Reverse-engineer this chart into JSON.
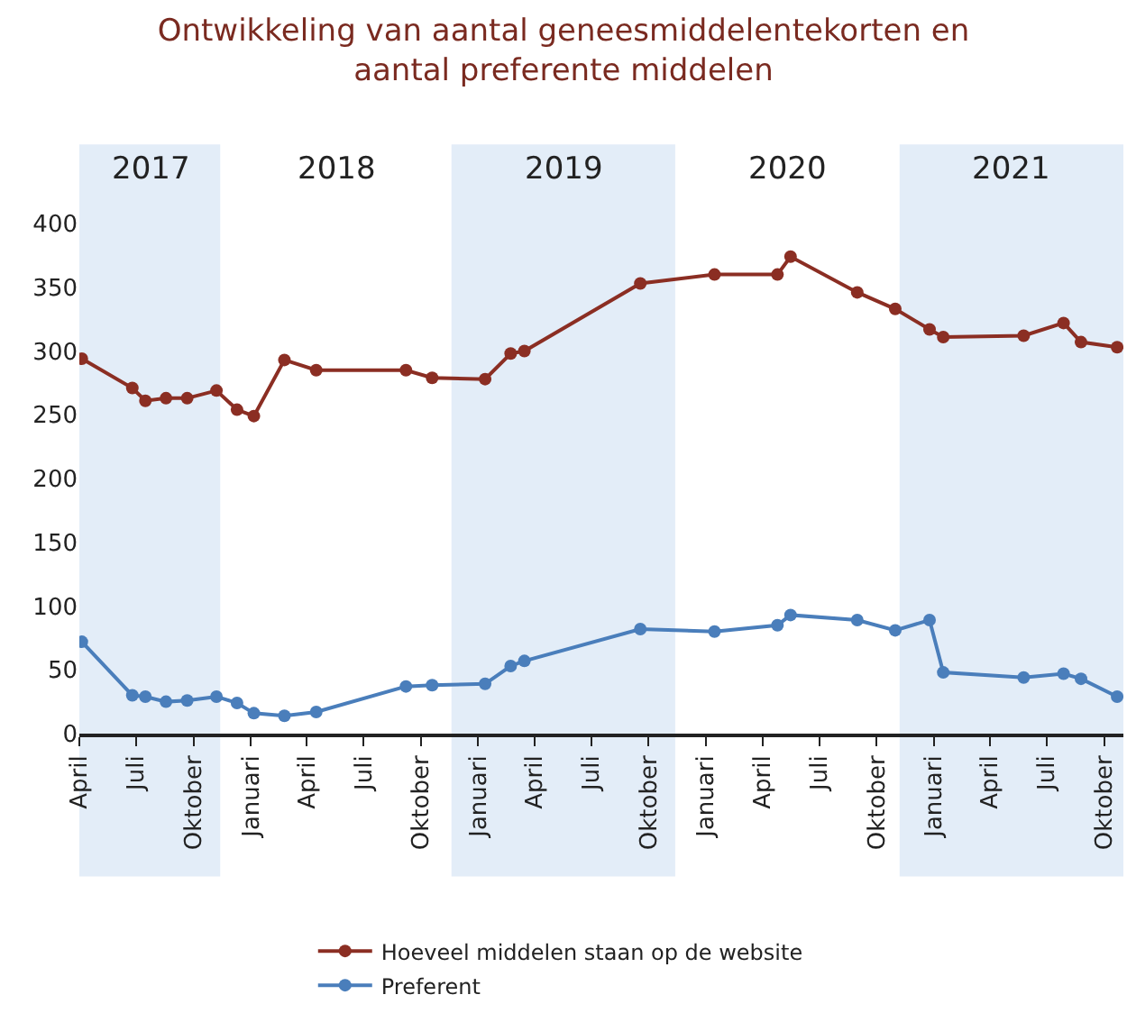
{
  "chart_data": {
    "type": "line",
    "title": "Ontwikkeling van aantal geneesmiddelentekorten en\naantal preferente middelen",
    "series": [
      {
        "name": "Hoeveel middelen staan op de website",
        "color": "#8b2e23",
        "x": [
          "2017-04-05",
          "2017-06-25",
          "2017-07-16",
          "2017-08-18",
          "2017-09-21",
          "2017-11-07",
          "2017-12-10",
          "2018-01-06",
          "2018-02-24",
          "2018-04-16",
          "2018-09-07",
          "2018-10-19",
          "2019-01-12",
          "2019-02-22",
          "2019-03-16",
          "2019-09-18",
          "2020-01-15",
          "2020-04-25",
          "2020-05-16",
          "2020-08-31",
          "2020-10-31",
          "2020-12-25",
          "2021-01-16",
          "2021-05-25",
          "2021-07-28",
          "2021-08-25",
          "2021-10-22"
        ],
        "values": [
          294,
          271,
          261,
          263,
          263,
          269,
          254,
          249,
          293,
          285,
          285,
          279,
          278,
          298,
          300,
          353,
          360,
          360,
          374,
          346,
          333,
          317,
          311,
          312,
          322,
          307,
          303
        ]
      },
      {
        "name": "Preferent",
        "color": "#4a7ebb",
        "x": [
          "2017-04-05",
          "2017-06-25",
          "2017-07-16",
          "2017-08-18",
          "2017-09-21",
          "2017-11-07",
          "2017-12-10",
          "2018-01-06",
          "2018-02-24",
          "2018-04-16",
          "2018-09-07",
          "2018-10-19",
          "2019-01-12",
          "2019-02-22",
          "2019-03-16",
          "2019-09-18",
          "2020-01-15",
          "2020-04-25",
          "2020-05-16",
          "2020-08-31",
          "2020-10-31",
          "2020-12-25",
          "2021-01-16",
          "2021-05-25",
          "2021-07-28",
          "2021-08-25",
          "2021-10-22"
        ],
        "values": [
          72,
          30,
          29,
          25,
          26,
          29,
          24,
          16,
          14,
          17,
          37,
          38,
          39,
          53,
          57,
          82,
          80,
          85,
          93,
          89,
          81,
          89,
          48,
          44,
          47,
          43,
          29
        ]
      }
    ],
    "xlim": [
      "2017-04-01",
      "2021-11-01"
    ],
    "xticks": [
      {
        "value": "2017-04-01",
        "label": "April"
      },
      {
        "value": "2017-07-01",
        "label": "Juli"
      },
      {
        "value": "2017-10-01",
        "label": "Oktober"
      },
      {
        "value": "2018-01-01",
        "label": "Januari"
      },
      {
        "value": "2018-04-01",
        "label": "April"
      },
      {
        "value": "2018-07-01",
        "label": "Juli"
      },
      {
        "value": "2018-10-01",
        "label": "Oktober"
      },
      {
        "value": "2019-01-01",
        "label": "Januari"
      },
      {
        "value": "2019-04-01",
        "label": "April"
      },
      {
        "value": "2019-07-01",
        "label": "Juli"
      },
      {
        "value": "2019-10-01",
        "label": "Oktober"
      },
      {
        "value": "2020-01-01",
        "label": "Januari"
      },
      {
        "value": "2020-04-01",
        "label": "April"
      },
      {
        "value": "2020-07-01",
        "label": "Juli"
      },
      {
        "value": "2020-10-01",
        "label": "Oktober"
      },
      {
        "value": "2021-01-01",
        "label": "Januari"
      },
      {
        "value": "2021-04-01",
        "label": "April"
      },
      {
        "value": "2021-07-01",
        "label": "Juli"
      },
      {
        "value": "2021-10-01",
        "label": "Oktober"
      }
    ],
    "ylim": [
      0,
      400
    ],
    "yticks": [
      0,
      50,
      100,
      150,
      200,
      250,
      300,
      350,
      400
    ],
    "bands": [
      {
        "axis": "x",
        "from": "2017-04-01",
        "to": "2017-11-13",
        "label": "2017",
        "color": "#e3edf8"
      },
      {
        "axis": "x",
        "from": "2018-11-19",
        "to": "2019-11-13",
        "label": "2019",
        "color": "#e3edf8"
      },
      {
        "axis": "x",
        "from": "2020-11-07",
        "to": "2021-11-01",
        "label": "2021",
        "color": "#e3edf8"
      }
    ],
    "annotations": [
      "2018",
      "2020"
    ],
    "grid": false,
    "legend": "bottom",
    "marker": "circle",
    "line_style": "solid"
  }
}
